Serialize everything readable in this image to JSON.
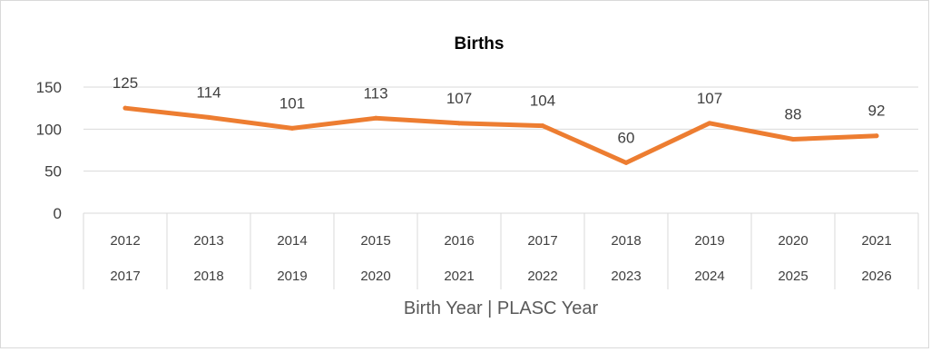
{
  "chart_data": {
    "type": "line",
    "title": "Births",
    "xlabel": "Birth Year | PLASC Year",
    "ylabel": "",
    "ylim": [
      0,
      150
    ],
    "yticks": [
      "0",
      "50",
      "100",
      "150"
    ],
    "grid": true,
    "legend": "none",
    "categories": [
      [
        "2012",
        "2017"
      ],
      [
        "2013",
        "2018"
      ],
      [
        "2014",
        "2019"
      ],
      [
        "2015",
        "2020"
      ],
      [
        "2016",
        "2021"
      ],
      [
        "2017",
        "2022"
      ],
      [
        "2018",
        "2023"
      ],
      [
        "2019",
        "2024"
      ],
      [
        "2020",
        "2025"
      ],
      [
        "2021",
        "2026"
      ]
    ],
    "series": [
      {
        "values": [
          125,
          114,
          101,
          113,
          107,
          104,
          60,
          107,
          88,
          92
        ],
        "color": "#ED7D31"
      }
    ],
    "data_labels": [
      "125",
      "114",
      "101",
      "113",
      "107",
      "104",
      "60",
      "107",
      "88",
      "92"
    ]
  }
}
